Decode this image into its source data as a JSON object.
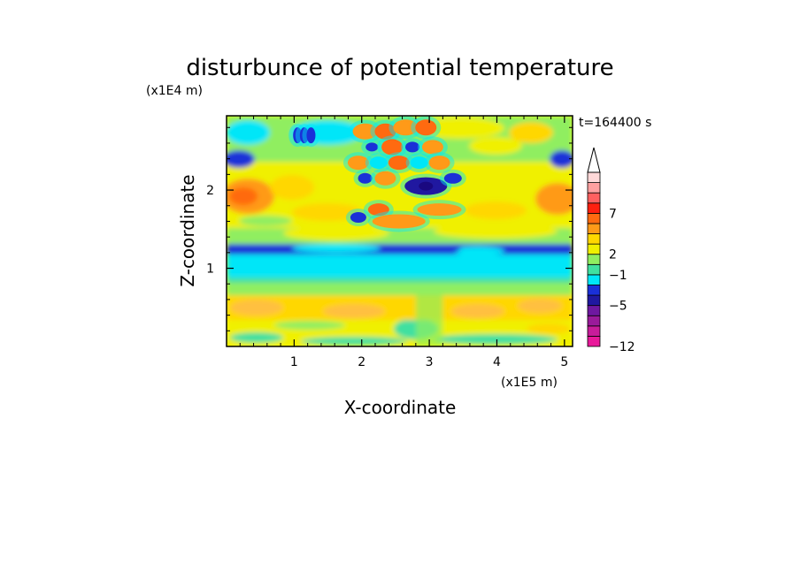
{
  "chart_data": {
    "type": "heatmap",
    "title": "disturbunce of potential temperature",
    "time_label": "t=164400 s",
    "xlabel": "X-coordinate",
    "ylabel": "Z-coordinate",
    "x_unit": "(x1E5 m)",
    "y_unit": "(x1E4 m)",
    "xlim": [
      0,
      5.12
    ],
    "ylim": [
      0,
      2.95
    ],
    "x_ticks": [
      "1",
      "2",
      "3",
      "4",
      "5"
    ],
    "x_tick_values": [
      1,
      2,
      3,
      4,
      5
    ],
    "y_ticks": [
      "1",
      "2"
    ],
    "y_tick_values": [
      1,
      2
    ],
    "colorbar": {
      "levels": [
        -12,
        -11,
        -10,
        -9,
        -8,
        -7,
        -6,
        -5,
        -4,
        -3,
        -2,
        -1,
        0,
        1,
        2,
        3,
        4,
        5,
        6,
        7,
        8,
        9,
        10
      ],
      "tick_labels": [
        "-12",
        "-5",
        "-1",
        "2",
        "7"
      ],
      "tick_values": [
        -12,
        -5,
        -1,
        2,
        7
      ],
      "colors": [
        "#e8189a",
        "#c81c9a",
        "#9a1a9a",
        "#6e18a0",
        "#2018a0",
        "#1a30d8",
        "#00e6f8",
        "#40e0a0",
        "#90ee60",
        "#f0f000",
        "#ffd700",
        "#ff9a18",
        "#ff6a10",
        "#ff2010",
        "#ff6060",
        "#ffa0a0",
        "#ffd8d8"
      ],
      "extend_max": true
    },
    "regions": [
      {
        "z_range": [
          0,
          0.35
        ],
        "dominant": "yellow/green mix"
      },
      {
        "z_range": [
          0.35,
          0.75
        ],
        "dominant": "light orange/yellow"
      },
      {
        "z_range": [
          0.75,
          1.2
        ],
        "dominant": "cyan"
      },
      {
        "z_range": [
          1.2,
          1.35
        ],
        "dominant": "blue band"
      },
      {
        "z_range": [
          1.35,
          2.95
        ],
        "dominant": "yellow/orange with wave pattern near x=1.8-3.4"
      }
    ]
  }
}
